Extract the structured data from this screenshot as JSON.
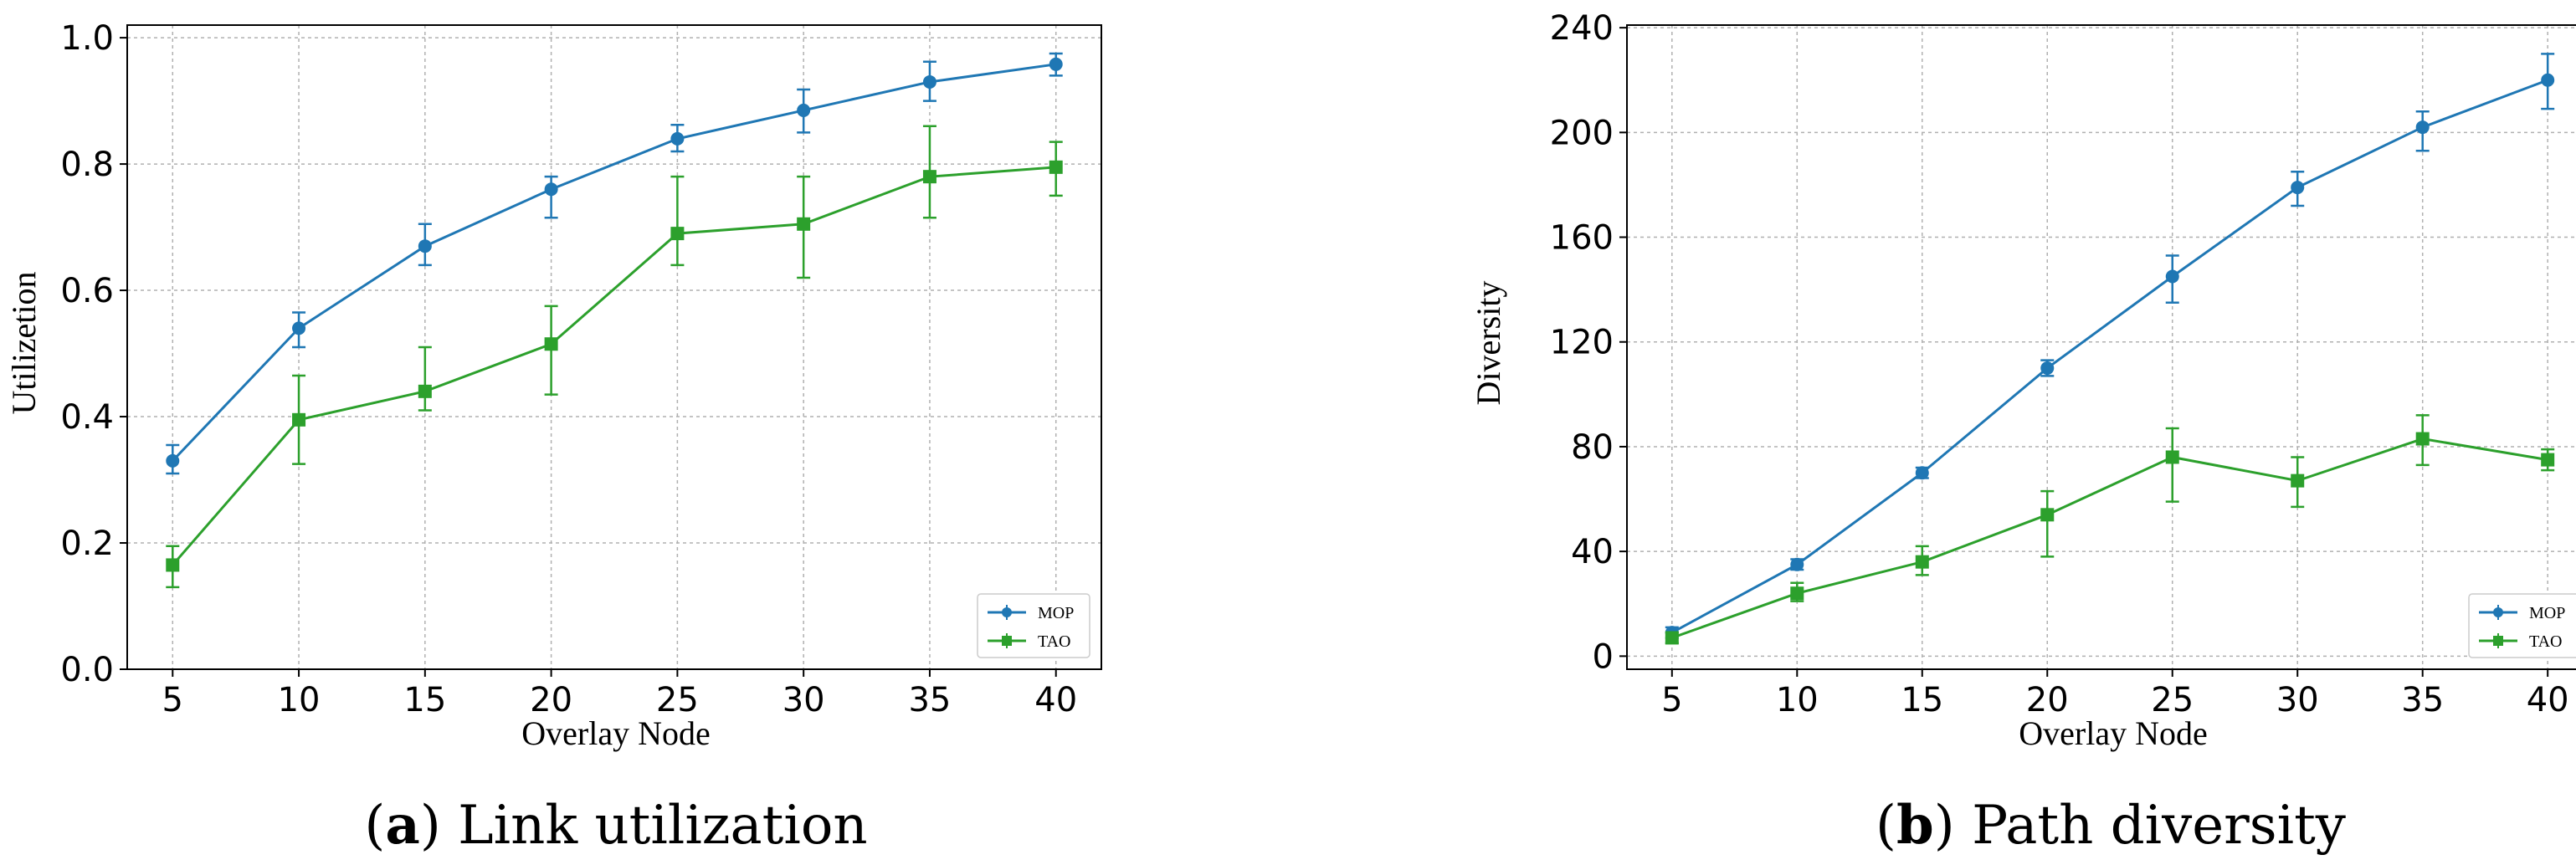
{
  "chart_data": [
    {
      "type": "line",
      "caption_letter": "a",
      "caption_text": "Link utilization",
      "xlabel": "Overlay Node",
      "ylabel": "Utilizetion",
      "x": [
        5,
        10,
        15,
        20,
        25,
        30,
        35,
        40
      ],
      "xticks": [
        "5",
        "10",
        "15",
        "20",
        "25",
        "30",
        "35",
        "40"
      ],
      "yticks": [
        "0.0",
        "0.2",
        "0.4",
        "0.6",
        "0.8",
        "1.0"
      ],
      "ytick_values": [
        0.0,
        0.2,
        0.4,
        0.6,
        0.8,
        1.0
      ],
      "xlim": [
        3.2,
        41.8
      ],
      "ylim": [
        0.0,
        1.02
      ],
      "grid": true,
      "legend_position": "bottom-right",
      "series": [
        {
          "name": "MOP",
          "color": "#1f77b4",
          "marker": "circle",
          "values": [
            0.33,
            0.54,
            0.67,
            0.76,
            0.84,
            0.885,
            0.93,
            0.958
          ],
          "err_low": [
            0.31,
            0.51,
            0.64,
            0.715,
            0.82,
            0.85,
            0.9,
            0.94
          ],
          "err_high": [
            0.355,
            0.565,
            0.705,
            0.78,
            0.862,
            0.918,
            0.962,
            0.975
          ]
        },
        {
          "name": "TAO",
          "color": "#2ca02c",
          "marker": "square",
          "values": [
            0.165,
            0.395,
            0.44,
            0.515,
            0.69,
            0.705,
            0.78,
            0.795
          ],
          "err_low": [
            0.13,
            0.325,
            0.41,
            0.435,
            0.64,
            0.62,
            0.715,
            0.75
          ],
          "err_high": [
            0.195,
            0.465,
            0.51,
            0.575,
            0.78,
            0.78,
            0.86,
            0.835
          ]
        }
      ]
    },
    {
      "type": "line",
      "caption_letter": "b",
      "caption_text": "Path diversity",
      "xlabel": "Overlay Node",
      "ylabel": "Diversity",
      "x": [
        5,
        10,
        15,
        20,
        25,
        30,
        35,
        40
      ],
      "xticks": [
        "5",
        "10",
        "15",
        "20",
        "25",
        "30",
        "35",
        "40"
      ],
      "yticks": [
        "0",
        "40",
        "80",
        "120",
        "160",
        "200",
        "240"
      ],
      "ytick_values": [
        0,
        40,
        80,
        120,
        160,
        200,
        240
      ],
      "xlim": [
        3.2,
        41.8
      ],
      "ylim": [
        -5,
        241
      ],
      "grid": true,
      "legend_position": "bottom-right",
      "series": [
        {
          "name": "MOP",
          "color": "#1f77b4",
          "marker": "circle",
          "values": [
            9,
            35,
            70,
            110,
            145,
            179,
            202,
            220
          ],
          "err_low": [
            7,
            33,
            68,
            107,
            135,
            172,
            193,
            209
          ],
          "err_high": [
            11,
            37,
            72,
            113,
            153,
            185,
            208,
            230
          ]
        },
        {
          "name": "TAO",
          "color": "#2ca02c",
          "marker": "square",
          "values": [
            7,
            24,
            36,
            54,
            76,
            67,
            83,
            75
          ],
          "err_low": [
            5,
            21,
            31,
            38,
            59,
            57,
            73,
            71
          ],
          "err_high": [
            9,
            28,
            42,
            63,
            87,
            76,
            92,
            79
          ]
        }
      ]
    }
  ]
}
